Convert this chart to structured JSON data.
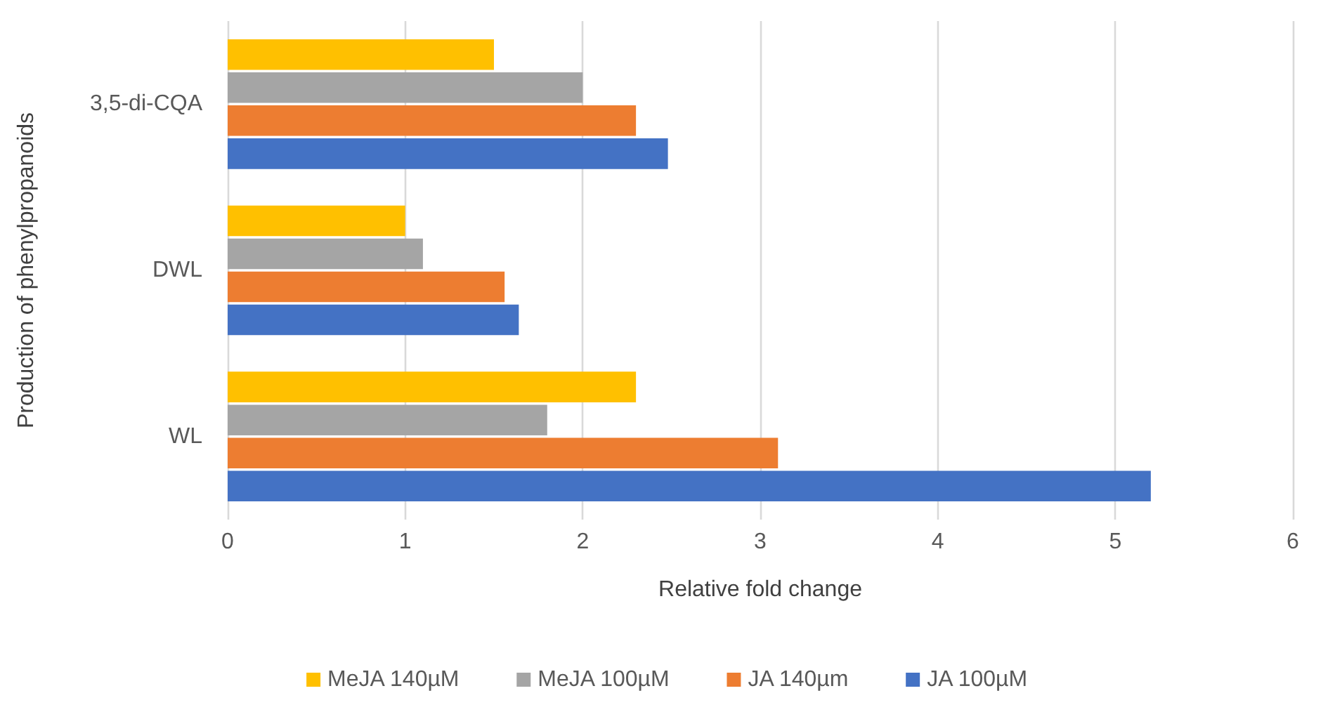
{
  "chart_data": {
    "type": "bar",
    "orientation": "horizontal",
    "xlabel": "Relative fold change",
    "ylabel": "Production of phenylpropanoids",
    "categories": [
      "3,5-di-CQA",
      "DWL",
      "WL"
    ],
    "series": [
      {
        "name": "MeJA 140µM",
        "color": "#ffc000",
        "values": [
          1.5,
          1.0,
          2.3
        ]
      },
      {
        "name": "MeJA 100µM",
        "color": "#a5a5a5",
        "values": [
          2.0,
          1.1,
          1.8
        ]
      },
      {
        "name": "JA 140µm",
        "color": "#ed7d31",
        "values": [
          2.3,
          1.56,
          3.1
        ]
      },
      {
        "name": "JA 100µM",
        "color": "#4472c4",
        "values": [
          2.48,
          1.64,
          5.2
        ]
      }
    ],
    "xlim": [
      0,
      6
    ],
    "xticks": [
      0,
      1,
      2,
      3,
      4,
      5,
      6
    ],
    "grid": "x",
    "legend": "bottom"
  }
}
